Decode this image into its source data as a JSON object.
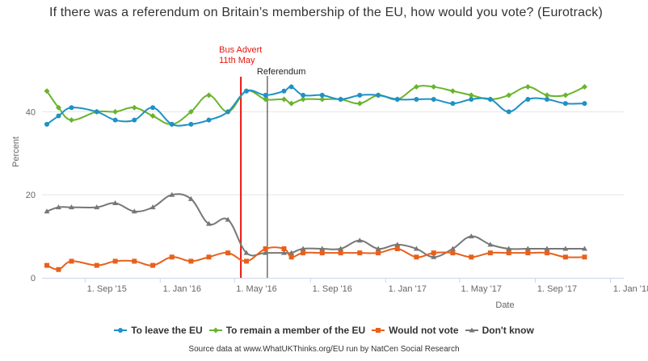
{
  "title": "If there was a referendum on Britain’s membership of the EU, how would you vote? (Eurotrack)",
  "credits": "Source data at www.WhatUKThinks.org/EU run by NatCen Social Research",
  "chart_data": {
    "type": "line",
    "title": "If there was a referendum on Britain’s membership of the EU, how would you vote? (Eurotrack)",
    "xlabel": "Date",
    "ylabel": "Percent",
    "xlim": [
      "2015-07-01",
      "2018-01-20"
    ],
    "ylim": [
      0,
      50
    ],
    "y_ticks": [
      0,
      20,
      40
    ],
    "x_ticks": [
      {
        "date": "2015-09-01",
        "label": "1. Sep '15"
      },
      {
        "date": "2016-01-01",
        "label": "1. Jan '16"
      },
      {
        "date": "2016-05-01",
        "label": "1. May '16"
      },
      {
        "date": "2016-09-01",
        "label": "1. Sep '16"
      },
      {
        "date": "2017-01-01",
        "label": "1. Jan '17"
      },
      {
        "date": "2017-05-01",
        "label": "1. May '17"
      },
      {
        "date": "2017-09-01",
        "label": "1. Sep '17"
      },
      {
        "date": "2018-01-01",
        "label": "1. Jan '18"
      }
    ],
    "plot_lines": [
      {
        "date": "2016-05-11",
        "label": "Bus Advert 11th May",
        "color": "#e8150c"
      },
      {
        "date": "2016-06-23",
        "label": "Referendum",
        "color": "#222222"
      }
    ],
    "series": [
      {
        "name": "To leave the EU",
        "color": "#1f91c4",
        "marker": "circle",
        "points": [
          [
            "2015-07-01",
            37
          ],
          [
            "2015-07-20",
            39
          ],
          [
            "2015-08-10",
            41
          ],
          [
            "2015-09-20",
            40
          ],
          [
            "2015-10-20",
            38
          ],
          [
            "2015-11-20",
            38
          ],
          [
            "2015-12-20",
            41
          ],
          [
            "2016-01-20",
            37
          ],
          [
            "2016-02-20",
            37
          ],
          [
            "2016-03-20",
            38
          ],
          [
            "2016-04-20",
            40
          ],
          [
            "2016-05-20",
            45
          ],
          [
            "2016-06-20",
            44
          ],
          [
            "2016-07-20",
            45
          ],
          [
            "2016-08-01",
            46
          ],
          [
            "2016-08-20",
            44
          ],
          [
            "2016-09-20",
            44
          ],
          [
            "2016-10-20",
            43
          ],
          [
            "2016-11-20",
            44
          ],
          [
            "2016-12-20",
            44
          ],
          [
            "2017-01-20",
            43
          ],
          [
            "2017-02-20",
            43
          ],
          [
            "2017-03-20",
            43
          ],
          [
            "2017-04-20",
            42
          ],
          [
            "2017-05-20",
            43
          ],
          [
            "2017-06-20",
            43
          ],
          [
            "2017-07-20",
            40
          ],
          [
            "2017-08-20",
            43
          ],
          [
            "2017-09-20",
            43
          ],
          [
            "2017-10-20",
            42
          ],
          [
            "2017-11-20",
            42
          ]
        ]
      },
      {
        "name": "To remain a member of the EU",
        "color": "#6ab42d",
        "marker": "diamond",
        "points": [
          [
            "2015-07-01",
            45
          ],
          [
            "2015-07-20",
            41
          ],
          [
            "2015-08-10",
            38
          ],
          [
            "2015-09-20",
            40
          ],
          [
            "2015-10-20",
            40
          ],
          [
            "2015-11-20",
            41
          ],
          [
            "2015-12-20",
            39
          ],
          [
            "2016-01-20",
            37
          ],
          [
            "2016-02-20",
            40
          ],
          [
            "2016-03-20",
            44
          ],
          [
            "2016-04-20",
            40
          ],
          [
            "2016-05-20",
            45
          ],
          [
            "2016-06-20",
            43
          ],
          [
            "2016-07-20",
            43
          ],
          [
            "2016-08-01",
            42
          ],
          [
            "2016-08-20",
            43
          ],
          [
            "2016-09-20",
            43
          ],
          [
            "2016-10-20",
            43
          ],
          [
            "2016-11-20",
            42
          ],
          [
            "2016-12-20",
            44
          ],
          [
            "2017-01-20",
            43
          ],
          [
            "2017-02-20",
            46
          ],
          [
            "2017-03-20",
            46
          ],
          [
            "2017-04-20",
            45
          ],
          [
            "2017-05-20",
            44
          ],
          [
            "2017-06-20",
            43
          ],
          [
            "2017-07-20",
            44
          ],
          [
            "2017-08-20",
            46
          ],
          [
            "2017-09-20",
            44
          ],
          [
            "2017-10-20",
            44
          ],
          [
            "2017-11-20",
            46
          ]
        ]
      },
      {
        "name": "Would not vote",
        "color": "#e8601c",
        "marker": "square",
        "points": [
          [
            "2015-07-01",
            3
          ],
          [
            "2015-07-20",
            2
          ],
          [
            "2015-08-10",
            4
          ],
          [
            "2015-09-20",
            3
          ],
          [
            "2015-10-20",
            4
          ],
          [
            "2015-11-20",
            4
          ],
          [
            "2015-12-20",
            3
          ],
          [
            "2016-01-20",
            5
          ],
          [
            "2016-02-20",
            4
          ],
          [
            "2016-03-20",
            5
          ],
          [
            "2016-04-20",
            6
          ],
          [
            "2016-05-20",
            4
          ],
          [
            "2016-06-20",
            7
          ],
          [
            "2016-07-20",
            7
          ],
          [
            "2016-08-01",
            5
          ],
          [
            "2016-08-20",
            6
          ],
          [
            "2016-09-20",
            6
          ],
          [
            "2016-10-20",
            6
          ],
          [
            "2016-11-20",
            6
          ],
          [
            "2016-12-20",
            6
          ],
          [
            "2017-01-20",
            7
          ],
          [
            "2017-02-20",
            5
          ],
          [
            "2017-03-20",
            6
          ],
          [
            "2017-04-20",
            6
          ],
          [
            "2017-05-20",
            5
          ],
          [
            "2017-06-20",
            6
          ],
          [
            "2017-07-20",
            6
          ],
          [
            "2017-08-20",
            6
          ],
          [
            "2017-09-20",
            6
          ],
          [
            "2017-10-20",
            5
          ],
          [
            "2017-11-20",
            5
          ]
        ]
      },
      {
        "name": "Don't know",
        "color": "#777777",
        "marker": "triangle",
        "points": [
          [
            "2015-07-01",
            16
          ],
          [
            "2015-07-20",
            17
          ],
          [
            "2015-08-10",
            17
          ],
          [
            "2015-09-20",
            17
          ],
          [
            "2015-10-20",
            18
          ],
          [
            "2015-11-20",
            16
          ],
          [
            "2015-12-20",
            17
          ],
          [
            "2016-01-20",
            20
          ],
          [
            "2016-02-20",
            19
          ],
          [
            "2016-03-20",
            13
          ],
          [
            "2016-04-20",
            14
          ],
          [
            "2016-05-20",
            6
          ],
          [
            "2016-06-20",
            6
          ],
          [
            "2016-07-20",
            6
          ],
          [
            "2016-08-01",
            6
          ],
          [
            "2016-08-20",
            7
          ],
          [
            "2016-09-20",
            7
          ],
          [
            "2016-10-20",
            7
          ],
          [
            "2016-11-20",
            9
          ],
          [
            "2016-12-20",
            7
          ],
          [
            "2017-01-20",
            8
          ],
          [
            "2017-02-20",
            7
          ],
          [
            "2017-03-20",
            5
          ],
          [
            "2017-04-20",
            7
          ],
          [
            "2017-05-20",
            10
          ],
          [
            "2017-06-20",
            8
          ],
          [
            "2017-07-20",
            7
          ],
          [
            "2017-08-20",
            7
          ],
          [
            "2017-09-20",
            7
          ],
          [
            "2017-10-20",
            7
          ],
          [
            "2017-11-20",
            7
          ]
        ]
      }
    ]
  }
}
